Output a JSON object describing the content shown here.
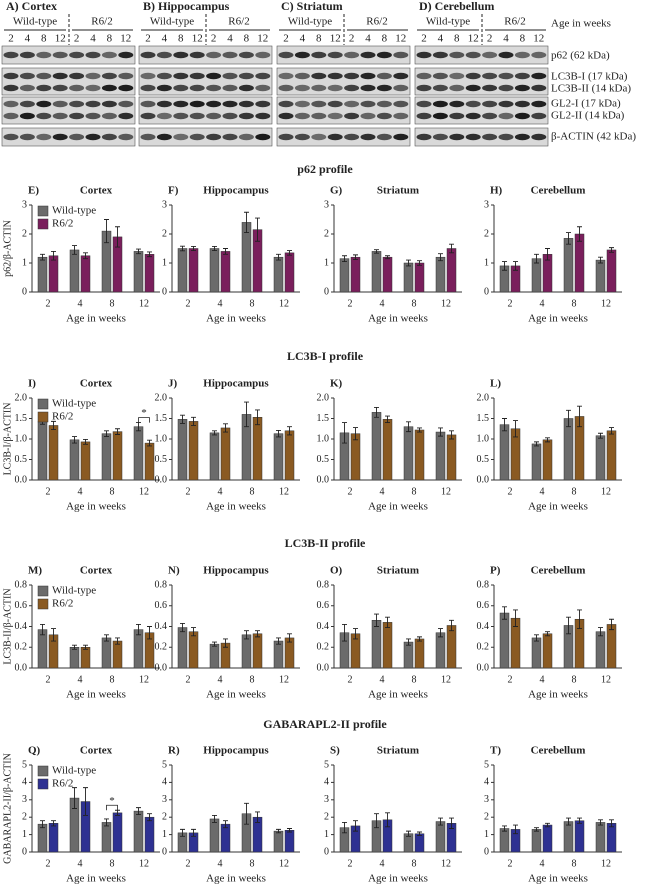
{
  "blot": {
    "panels": [
      "A)    Cortex",
      "B)    Hippocampus",
      "C)    Striatum",
      "D)    Cerebellum"
    ],
    "groups": [
      "Wild-type",
      "R6/2"
    ],
    "ages": [
      "2",
      "4",
      "8",
      "12"
    ],
    "age_label": "Age in weeks",
    "bands": [
      "p62 (62 kDa)",
      "LC3B-I (17 kDa)",
      "LC3B-II (14 kDa)",
      "GL2-I (17 kDa)",
      "GL2-II (14 kDa)",
      "β-ACTIN (42 kDa)"
    ]
  },
  "sections": [
    "p62 profile",
    "LC3B-I profile",
    "LC3B-II profile",
    "GABARAPL2-II profile"
  ],
  "chart_data": [
    {
      "type": "bar",
      "panel": "E)",
      "title": "Cortex",
      "ylabel": "p62/β-ACTIN",
      "xlabel": "Age in weeks",
      "legend": "upper left",
      "categories": [
        "2",
        "4",
        "8",
        "12"
      ],
      "ylim": [
        0,
        3
      ],
      "yticks": [
        0,
        1,
        2,
        3
      ],
      "series": [
        {
          "name": "Wild-type",
          "color": "#6b6b6b",
          "values": [
            1.2,
            1.45,
            2.1,
            1.4
          ],
          "error": [
            0.1,
            0.15,
            0.4,
            0.08
          ]
        },
        {
          "name": "R6/2",
          "color": "#7a1f5c",
          "values": [
            1.25,
            1.25,
            1.9,
            1.3
          ],
          "error": [
            0.15,
            0.1,
            0.35,
            0.08
          ]
        }
      ]
    },
    {
      "type": "bar",
      "panel": "F)",
      "title": "Hippocampus",
      "xlabel": "Age in weeks",
      "categories": [
        "2",
        "4",
        "8",
        "12"
      ],
      "ylim": [
        0,
        3
      ],
      "yticks": [
        0,
        1,
        2,
        3
      ],
      "series": [
        {
          "color": "#6b6b6b",
          "values": [
            1.5,
            1.5,
            2.4,
            1.2
          ],
          "error": [
            0.08,
            0.07,
            0.35,
            0.1
          ]
        },
        {
          "color": "#7a1f5c",
          "values": [
            1.5,
            1.4,
            2.15,
            1.35
          ],
          "error": [
            0.07,
            0.1,
            0.4,
            0.08
          ]
        }
      ]
    },
    {
      "type": "bar",
      "panel": "G)",
      "title": "Striatum",
      "xlabel": "Age in weeks",
      "categories": [
        "2",
        "4",
        "8",
        "12"
      ],
      "ylim": [
        0,
        3
      ],
      "yticks": [
        0,
        1,
        2,
        3
      ],
      "series": [
        {
          "color": "#6b6b6b",
          "values": [
            1.15,
            1.4,
            1.0,
            1.2
          ],
          "error": [
            0.1,
            0.06,
            0.1,
            0.12
          ]
        },
        {
          "color": "#7a1f5c",
          "values": [
            1.2,
            1.2,
            1.0,
            1.5
          ],
          "error": [
            0.08,
            0.05,
            0.08,
            0.15
          ]
        }
      ]
    },
    {
      "type": "bar",
      "panel": "H)",
      "title": "Cerebellum",
      "xlabel": "Age in weeks",
      "categories": [
        "2",
        "4",
        "8",
        "12"
      ],
      "ylim": [
        0,
        3
      ],
      "yticks": [
        0,
        1,
        2,
        3
      ],
      "series": [
        {
          "color": "#6b6b6b",
          "values": [
            0.9,
            1.15,
            1.85,
            1.1
          ],
          "error": [
            0.15,
            0.15,
            0.2,
            0.1
          ]
        },
        {
          "color": "#7a1f5c",
          "values": [
            0.9,
            1.3,
            2.0,
            1.45
          ],
          "error": [
            0.15,
            0.2,
            0.25,
            0.08
          ]
        }
      ]
    },
    {
      "type": "bar",
      "panel": "I)",
      "title": "Cortex",
      "ylabel": "LC3B-I/β-ACTIN",
      "xlabel": "Age in weeks",
      "legend": "upper left",
      "categories": [
        "2",
        "4",
        "8",
        "12"
      ],
      "ylim": [
        0,
        2
      ],
      "yticks": [
        {
          "value": 0,
          "label": "0.0"
        },
        {
          "value": 0.5,
          "label": "0.5"
        },
        {
          "value": 1,
          "label": "1.0"
        },
        {
          "value": 1.5,
          "label": "1.5"
        },
        {
          "value": 2,
          "label": "2.0"
        }
      ],
      "annotations": [
        {
          "text": "*",
          "category": "12"
        }
      ],
      "series": [
        {
          "name": "Wild-type",
          "color": "#6b6b6b",
          "values": [
            1.42,
            0.98,
            1.13,
            1.3
          ],
          "error": [
            0.06,
            0.08,
            0.07,
            0.1
          ]
        },
        {
          "name": "R6/2",
          "color": "#8a5a22",
          "values": [
            1.33,
            0.93,
            1.18,
            0.9
          ],
          "error": [
            0.1,
            0.06,
            0.07,
            0.07
          ]
        }
      ]
    },
    {
      "type": "bar",
      "panel": "J)",
      "title": "Hippocampus",
      "xlabel": "Age in weeks",
      "categories": [
        "2",
        "4",
        "8",
        "12"
      ],
      "ylim": [
        0,
        2
      ],
      "yticks": [
        {
          "value": 0,
          "label": "0.0"
        },
        {
          "value": 0.5,
          "label": "0.5"
        },
        {
          "value": 1,
          "label": "1.0"
        },
        {
          "value": 1.5,
          "label": "1.5"
        },
        {
          "value": 2,
          "label": "2.0"
        }
      ],
      "series": [
        {
          "color": "#6b6b6b",
          "values": [
            1.48,
            1.15,
            1.6,
            1.13
          ],
          "error": [
            0.1,
            0.05,
            0.3,
            0.08
          ]
        },
        {
          "color": "#8a5a22",
          "values": [
            1.43,
            1.27,
            1.53,
            1.2
          ],
          "error": [
            0.1,
            0.1,
            0.18,
            0.1
          ]
        }
      ]
    },
    {
      "type": "bar",
      "panel": "K)",
      "xlabel": "Age in weeks",
      "categories": [
        "2",
        "4",
        "8",
        "12"
      ],
      "ylim": [
        0,
        2
      ],
      "yticks": [
        {
          "value": 0,
          "label": "0.0"
        },
        {
          "value": 0.5,
          "label": "0.5"
        },
        {
          "value": 1,
          "label": "1.0"
        },
        {
          "value": 1.5,
          "label": "1.5"
        },
        {
          "value": 2,
          "label": "2.0"
        }
      ],
      "series": [
        {
          "color": "#6b6b6b",
          "values": [
            1.15,
            1.65,
            1.3,
            1.17
          ],
          "error": [
            0.25,
            0.12,
            0.12,
            0.1
          ]
        },
        {
          "color": "#8a5a22",
          "values": [
            1.13,
            1.48,
            1.22,
            1.1
          ],
          "error": [
            0.15,
            0.08,
            0.05,
            0.1
          ]
        }
      ]
    },
    {
      "type": "bar",
      "panel": "L)",
      "xlabel": "Age in weeks",
      "categories": [
        "2",
        "4",
        "8",
        "12"
      ],
      "ylim": [
        0,
        2
      ],
      "yticks": [
        {
          "value": 0,
          "label": "0.0"
        },
        {
          "value": 0.5,
          "label": "0.5"
        },
        {
          "value": 1,
          "label": "1.0"
        },
        {
          "value": 1.5,
          "label": "1.5"
        },
        {
          "value": 2,
          "label": "2.0"
        }
      ],
      "series": [
        {
          "color": "#6b6b6b",
          "values": [
            1.35,
            0.88,
            1.5,
            1.08
          ],
          "error": [
            0.15,
            0.05,
            0.2,
            0.06
          ]
        },
        {
          "color": "#8a5a22",
          "values": [
            1.25,
            0.98,
            1.55,
            1.2
          ],
          "error": [
            0.2,
            0.05,
            0.25,
            0.08
          ]
        }
      ]
    },
    {
      "type": "bar",
      "panel": "M)",
      "title": "Cortex",
      "ylabel": "LC3B-II/β-ACTIN",
      "xlabel": "Age in weeks",
      "legend": "upper left",
      "categories": [
        "2",
        "4",
        "8",
        "12"
      ],
      "ylim": [
        0,
        0.8
      ],
      "yticks": [
        {
          "value": 0,
          "label": "0.0"
        },
        {
          "value": 0.2,
          "label": "0.2"
        },
        {
          "value": 0.4,
          "label": "0.4"
        },
        {
          "value": 0.6,
          "label": "0.6"
        },
        {
          "value": 0.8,
          "label": "0.8"
        }
      ],
      "series": [
        {
          "name": "Wild-type",
          "color": "#6b6b6b",
          "values": [
            0.37,
            0.2,
            0.29,
            0.37
          ],
          "error": [
            0.05,
            0.02,
            0.03,
            0.05
          ]
        },
        {
          "name": "R6/2",
          "color": "#8a5a22",
          "values": [
            0.32,
            0.2,
            0.26,
            0.34
          ],
          "error": [
            0.06,
            0.02,
            0.03,
            0.06
          ]
        }
      ]
    },
    {
      "type": "bar",
      "panel": "N)",
      "title": "Hippocampus",
      "xlabel": "Age in weeks",
      "categories": [
        "2",
        "4",
        "8",
        "12"
      ],
      "ylim": [
        0,
        0.8
      ],
      "yticks": [
        {
          "value": 0,
          "label": "0.0"
        },
        {
          "value": 0.2,
          "label": "0.2"
        },
        {
          "value": 0.4,
          "label": "0.4"
        },
        {
          "value": 0.6,
          "label": "0.6"
        },
        {
          "value": 0.8,
          "label": "0.8"
        }
      ],
      "series": [
        {
          "color": "#6b6b6b",
          "values": [
            0.39,
            0.23,
            0.32,
            0.26
          ],
          "error": [
            0.04,
            0.02,
            0.04,
            0.03
          ]
        },
        {
          "color": "#8a5a22",
          "values": [
            0.35,
            0.24,
            0.33,
            0.29
          ],
          "error": [
            0.04,
            0.04,
            0.03,
            0.04
          ]
        }
      ]
    },
    {
      "type": "bar",
      "panel": "O)",
      "title": "Striatum",
      "xlabel": "Age in weeks",
      "categories": [
        "2",
        "4",
        "8",
        "12"
      ],
      "ylim": [
        0,
        0.8
      ],
      "yticks": [
        {
          "value": 0,
          "label": "0.0"
        },
        {
          "value": 0.2,
          "label": "0.2"
        },
        {
          "value": 0.4,
          "label": "0.4"
        },
        {
          "value": 0.6,
          "label": "0.6"
        },
        {
          "value": 0.8,
          "label": "0.8"
        }
      ],
      "series": [
        {
          "color": "#6b6b6b",
          "values": [
            0.34,
            0.46,
            0.25,
            0.34
          ],
          "error": [
            0.08,
            0.06,
            0.03,
            0.04
          ]
        },
        {
          "color": "#8a5a22",
          "values": [
            0.33,
            0.44,
            0.28,
            0.41
          ],
          "error": [
            0.05,
            0.05,
            0.02,
            0.05
          ]
        }
      ]
    },
    {
      "type": "bar",
      "panel": "P)",
      "title": "Cerebellum",
      "xlabel": "Age in weeks",
      "categories": [
        "2",
        "4",
        "8",
        "12"
      ],
      "ylim": [
        0,
        0.8
      ],
      "yticks": [
        {
          "value": 0,
          "label": "0.0"
        },
        {
          "value": 0.2,
          "label": "0.2"
        },
        {
          "value": 0.4,
          "label": "0.4"
        },
        {
          "value": 0.6,
          "label": "0.6"
        },
        {
          "value": 0.8,
          "label": "0.8"
        }
      ],
      "series": [
        {
          "color": "#6b6b6b",
          "values": [
            0.53,
            0.29,
            0.41,
            0.35
          ],
          "error": [
            0.06,
            0.03,
            0.08,
            0.04
          ]
        },
        {
          "color": "#8a5a22",
          "values": [
            0.48,
            0.33,
            0.47,
            0.42
          ],
          "error": [
            0.08,
            0.02,
            0.09,
            0.05
          ]
        }
      ]
    },
    {
      "type": "bar",
      "panel": "Q)",
      "title": "Cortex",
      "ylabel": "GABARAPL2-II/β-ACTIN",
      "xlabel": "Age in weeks",
      "legend": "upper left",
      "categories": [
        "2",
        "4",
        "8",
        "12"
      ],
      "ylim": [
        0,
        5
      ],
      "yticks": [
        0,
        1,
        2,
        3,
        4,
        5
      ],
      "annotations": [
        {
          "text": "*",
          "category": "8"
        }
      ],
      "series": [
        {
          "name": "Wild-type",
          "color": "#6b6b6b",
          "values": [
            1.6,
            3.1,
            1.7,
            2.35
          ],
          "error": [
            0.2,
            0.6,
            0.2,
            0.2
          ]
        },
        {
          "name": "R6/2",
          "color": "#2e3192",
          "values": [
            1.65,
            2.9,
            2.25,
            2.0
          ],
          "error": [
            0.15,
            0.8,
            0.15,
            0.2
          ]
        }
      ]
    },
    {
      "type": "bar",
      "panel": "R)",
      "title": "Hippocampus",
      "xlabel": "Age in weeks",
      "categories": [
        "2",
        "4",
        "8",
        "12"
      ],
      "ylim": [
        0,
        5
      ],
      "yticks": [
        0,
        1,
        2,
        3,
        4,
        5
      ],
      "series": [
        {
          "color": "#6b6b6b",
          "values": [
            1.1,
            1.9,
            2.2,
            1.2
          ],
          "error": [
            0.2,
            0.2,
            0.6,
            0.1
          ]
        },
        {
          "color": "#2e3192",
          "values": [
            1.1,
            1.6,
            2.0,
            1.25
          ],
          "error": [
            0.2,
            0.2,
            0.3,
            0.1
          ]
        }
      ]
    },
    {
      "type": "bar",
      "panel": "S)",
      "title": "Striatum",
      "xlabel": "Age in weeks",
      "categories": [
        "2",
        "4",
        "8",
        "12"
      ],
      "ylim": [
        0,
        5
      ],
      "yticks": [
        0,
        1,
        2,
        3,
        4,
        5
      ],
      "series": [
        {
          "color": "#6b6b6b",
          "values": [
            1.4,
            1.8,
            1.05,
            1.75
          ],
          "error": [
            0.3,
            0.4,
            0.15,
            0.2
          ]
        },
        {
          "color": "#2e3192",
          "values": [
            1.5,
            1.85,
            1.05,
            1.65
          ],
          "error": [
            0.3,
            0.4,
            0.1,
            0.3
          ]
        }
      ]
    },
    {
      "type": "bar",
      "panel": "T)",
      "title": "Cerebellum",
      "xlabel": "Age in weeks",
      "categories": [
        "2",
        "4",
        "8",
        "12"
      ],
      "ylim": [
        0,
        5
      ],
      "yticks": [
        0,
        1,
        2,
        3,
        4,
        5
      ],
      "series": [
        {
          "color": "#6b6b6b",
          "values": [
            1.35,
            1.3,
            1.75,
            1.7
          ],
          "error": [
            0.15,
            0.1,
            0.2,
            0.15
          ]
        },
        {
          "color": "#2e3192",
          "values": [
            1.3,
            1.55,
            1.8,
            1.65
          ],
          "error": [
            0.25,
            0.1,
            0.15,
            0.2
          ]
        }
      ]
    }
  ]
}
